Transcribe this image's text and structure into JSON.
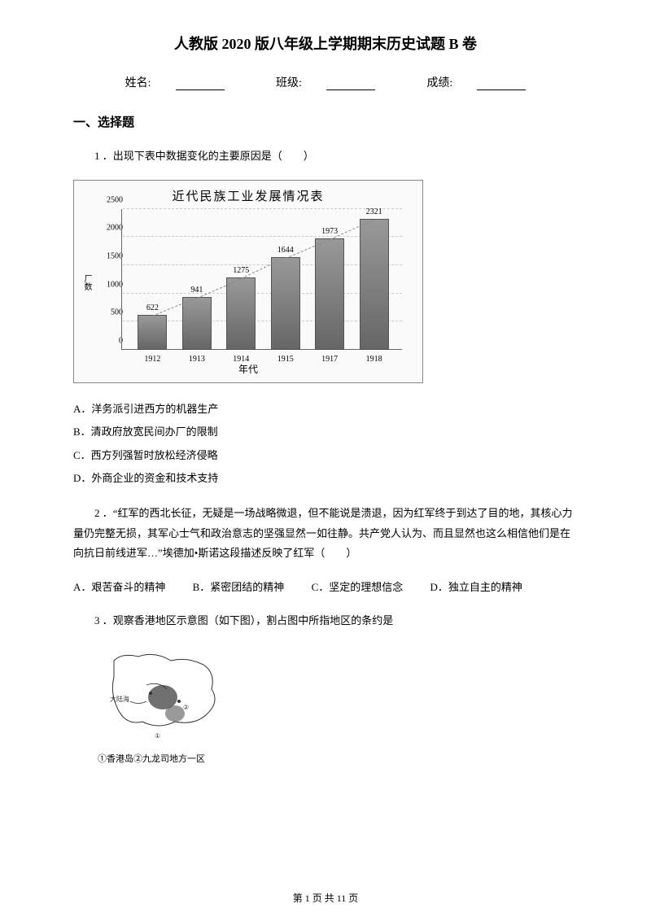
{
  "title": "人教版 2020 版八年级上学期期末历史试题 B 卷",
  "info": {
    "name_label": "姓名:",
    "class_label": "班级:",
    "score_label": "成绩:"
  },
  "section1": {
    "header": "一、选择题",
    "q1": {
      "text": "1 ．出现下表中数据变化的主要原因是（　　）",
      "chart": {
        "title": "近代民族工业发展情况表",
        "y_label": "厂数",
        "x_label": "年代",
        "y_ticks": [
          "0",
          "500",
          "1000",
          "1500",
          "2000",
          "2500"
        ],
        "y_max": 2500,
        "categories": [
          "1912",
          "1913",
          "1914",
          "1915",
          "1917",
          "1918"
        ],
        "values": [
          622,
          941,
          1275,
          1644,
          1973,
          2321
        ],
        "bar_color": "#777777",
        "grid_color": "#cccccc",
        "bg_color": "#fafafa"
      },
      "options": {
        "a": "A．洋务派引进西方的机器生产",
        "b": "B．清政府放宽民间办厂的限制",
        "c": "C．西方列强暂时放松经济侵略",
        "d": "D．外商企业的资金和技术支持"
      }
    },
    "q2": {
      "text": "2 ．“红军的西北长征，无疑是一场战略微退，但不能说是溃退，因为红军终于到达了目的地，其核心力量仍完整无损，其军心士气和政治意志的坚强显然一如往静。共产党人认为、而且显然也这么相信他们是在向抗日前线进军…”埃德加•斯诺这段描述反映了红军（　　）",
      "options": {
        "a": "A．艰苦奋斗的精神",
        "b": "B．紧密团结的精神",
        "c": "C．坚定的理想信念",
        "d": "D．独立自主的精神"
      }
    },
    "q3": {
      "text": "3 ．观察香港地区示意图（如下图），割占图中所指地区的条约是",
      "map_caption": "①香港岛②九龙司地方一区"
    }
  },
  "footer": "第 1 页 共 11 页"
}
